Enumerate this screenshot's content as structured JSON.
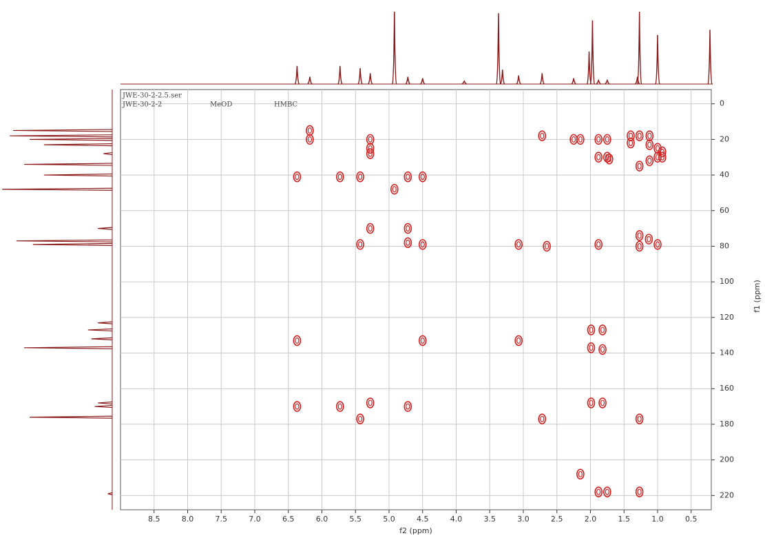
{
  "chart_data": {
    "type": "contour",
    "header_lines": [
      "JWE-30-2-2.5.ser",
      "JWE-30-2-2",
      "MeOD",
      "HMBC"
    ],
    "x_label": "f2 (ppm)",
    "y_label": "f1 (ppm)",
    "xlim": [
      9.0,
      0.2
    ],
    "ylim": [
      -8,
      228
    ],
    "xticks": [
      8.5,
      {
        "value": 8,
        "label": "8.0"
      },
      7.5,
      {
        "value": 7,
        "label": "7.0"
      },
      6.5,
      {
        "value": 6,
        "label": "6.0"
      },
      5.5,
      {
        "value": 5,
        "label": "5.0"
      },
      4.5,
      {
        "value": 4,
        "label": "4.0"
      },
      3.5,
      {
        "value": 3,
        "label": "3.0"
      },
      2.5,
      {
        "value": 2,
        "label": "2.0"
      },
      1.5,
      {
        "value": 1,
        "label": "1.0"
      },
      0.5
    ],
    "yticks": [
      0,
      20,
      40,
      60,
      80,
      100,
      120,
      140,
      160,
      180,
      200,
      220
    ],
    "grid": true,
    "color": "#d42020",
    "trace_color": "#8b1a1a",
    "x": [
      6.18,
      6.18,
      5.28,
      5.28,
      5.28,
      6.37,
      5.73,
      5.43,
      4.72,
      4.5,
      4.92,
      2.72,
      2.25,
      2.15,
      1.88,
      1.75,
      1.4,
      1.27,
      1.12,
      1.4,
      1.12,
      1.0,
      0.93,
      1.0,
      0.93,
      1.88,
      1.75,
      1.72,
      1.27,
      1.12,
      5.28,
      4.72,
      1.27,
      1.13,
      5.43,
      4.72,
      4.5,
      3.07,
      2.65,
      1.88,
      1.27,
      1.0,
      1.99,
      1.82,
      1.99,
      1.82,
      6.37,
      4.5,
      3.07,
      6.37,
      5.73,
      5.28,
      4.72,
      1.99,
      1.82,
      5.43,
      2.72,
      1.27,
      2.15,
      1.88,
      1.75,
      1.27
    ],
    "values": [
      15,
      20,
      20,
      25,
      28,
      41,
      41,
      41,
      41,
      41,
      48,
      18,
      20,
      20,
      20,
      20,
      18,
      18,
      18,
      22,
      23,
      25,
      27,
      30,
      30,
      30,
      30,
      31,
      35,
      32,
      70,
      70,
      74,
      76,
      79,
      78,
      79,
      79,
      80,
      79,
      80,
      79,
      127,
      127,
      137,
      138,
      133,
      133,
      133,
      170,
      170,
      168,
      170,
      168,
      168,
      177,
      177,
      177,
      208,
      218,
      218,
      218
    ],
    "top_trace": {
      "x": [
        6.37,
        6.18,
        5.73,
        5.43,
        5.28,
        4.92,
        4.72,
        4.5,
        3.88,
        3.37,
        3.31,
        3.07,
        2.72,
        2.25,
        2.02,
        1.97,
        1.88,
        1.75,
        1.3,
        1.27,
        1.0,
        0.22
      ],
      "values": [
        25,
        10,
        25,
        22,
        15,
        100,
        10,
        8,
        4,
        98,
        20,
        12,
        15,
        8,
        45,
        88,
        5,
        5,
        10,
        100,
        68,
        75
      ]
    },
    "left_trace": {
      "x": [
        15,
        18,
        20,
        23,
        28,
        34,
        40,
        48,
        70,
        77,
        79,
        123,
        127,
        132,
        137,
        168,
        170,
        176,
        219
      ],
      "values": [
        90,
        93,
        75,
        62,
        8,
        80,
        62,
        100,
        13,
        87,
        72,
        13,
        22,
        19,
        80,
        13,
        16,
        75,
        4
      ]
    }
  }
}
